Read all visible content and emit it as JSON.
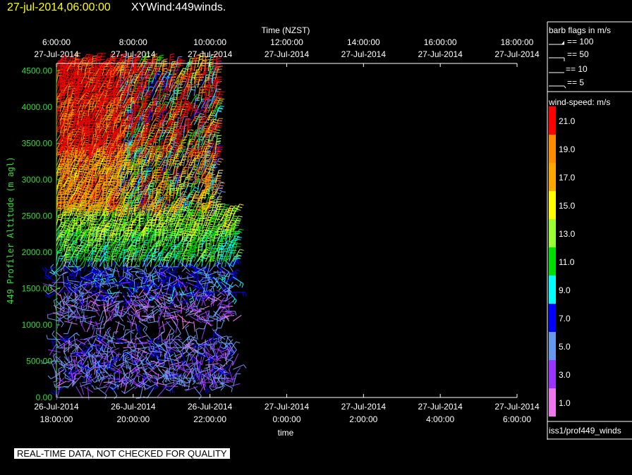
{
  "header": {
    "datetime": "27-jul-2014,06:00:00",
    "title": "XYWind:449winds."
  },
  "footer": {
    "qc_note": "REAL-TIME DATA, NOT CHECKED FOR QUALITY",
    "source_label": "iss1/prof449_winds"
  },
  "chart_data": {
    "type": "wind-barb time-height plot",
    "title": "",
    "top_axis_title": "Time (NZST)",
    "bottom_axis_title": "time",
    "ylabel": "449 Profiler Altitude (m agl)",
    "ylim": [
      0,
      4600
    ],
    "yticks": [
      "0.00",
      "500.00",
      "1000.00",
      "1500.00",
      "2000.00",
      "2500.00",
      "3000.00",
      "3500.00",
      "4000.00",
      "4500.00"
    ],
    "bottom_ticks": [
      {
        "date": "26-Jul-2014",
        "time": "18:00:00"
      },
      {
        "date": "26-Jul-2014",
        "time": "20:00:00"
      },
      {
        "date": "26-Jul-2014",
        "time": "22:00:00"
      },
      {
        "date": "27-Jul-2014",
        "time": "0:00:00"
      },
      {
        "date": "27-Jul-2014",
        "time": "2:00:00"
      },
      {
        "date": "27-Jul-2014",
        "time": "4:00:00"
      },
      {
        "date": "27-Jul-2014",
        "time": "6:00:00"
      }
    ],
    "top_ticks": [
      {
        "time": "6:00:00",
        "date": "27-Jul-2014"
      },
      {
        "time": "8:00:00",
        "date": "27-Jul-2014"
      },
      {
        "time": "10:00:00",
        "date": "27-Jul-2014"
      },
      {
        "time": "12:00:00",
        "date": "27-Jul-2014"
      },
      {
        "time": "14:00:00",
        "date": "27-Jul-2014"
      },
      {
        "time": "16:00:00",
        "date": "27-Jul-2014"
      },
      {
        "time": "18:00:00",
        "date": "27-Jul-2014"
      }
    ],
    "data_time_range_hours": [
      0,
      4.6
    ],
    "barb_legend": {
      "title": "barb flags in m/s",
      "items": [
        "== 100",
        "== 50",
        "== 10",
        "== 5"
      ]
    },
    "colorbar": {
      "title": "wind-speed: m/s",
      "labels": [
        "21.0",
        "19.0",
        "17.0",
        "15.0",
        "13.0",
        "11.0",
        "9.0",
        "7.0",
        "5.0",
        "3.0",
        "1.0"
      ],
      "colors": [
        "#ff0000",
        "#ff8c00",
        "#ffa500",
        "#ffff00",
        "#99ff33",
        "#00dd00",
        "#00ffff",
        "#0000ff",
        "#6699ee",
        "#9933ff",
        "#ee77ee"
      ]
    },
    "profiles": [
      {
        "alt_range": [
          150,
          800
        ],
        "speed": 4
      },
      {
        "alt_range": [
          1050,
          1400
        ],
        "speed": 3
      },
      {
        "alt_range": [
          1450,
          1800
        ],
        "speed": 6
      },
      {
        "alt_range": [
          1800,
          2150
        ],
        "speed": 11
      },
      {
        "alt_range": [
          2150,
          2500
        ],
        "speed": 13
      },
      {
        "alt_range": [
          2500,
          3300
        ],
        "speed": 18
      },
      {
        "alt_range": [
          3300,
          4550
        ],
        "speed": 21
      }
    ]
  }
}
